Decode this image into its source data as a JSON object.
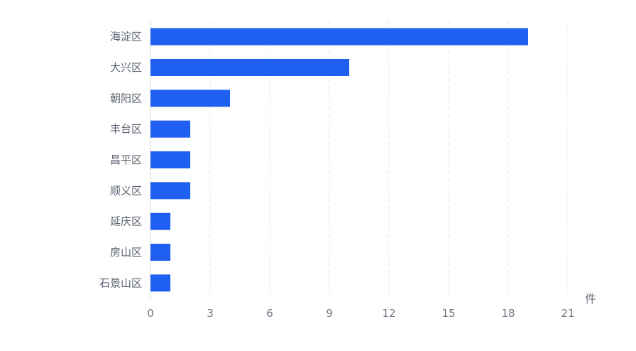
{
  "chart_data": {
    "type": "bar",
    "orientation": "horizontal",
    "categories": [
      "海淀区",
      "大兴区",
      "朝阳区",
      "丰台区",
      "昌平区",
      "顺义区",
      "延庆区",
      "房山区",
      "石景山区"
    ],
    "values": [
      19,
      10,
      4,
      2,
      2,
      2,
      1,
      1,
      1
    ],
    "xlim": [
      0,
      21
    ],
    "xticks": [
      0,
      3,
      6,
      9,
      12,
      15,
      18,
      21
    ],
    "unit_label": "件",
    "grid": "vertical dashed",
    "legend": "none",
    "bar_color": "#1f5ff2"
  }
}
